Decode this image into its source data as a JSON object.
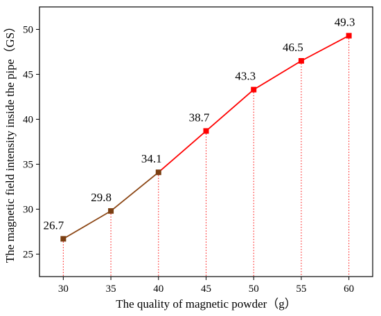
{
  "chart_data": {
    "type": "line",
    "xlabel": "The quality of magnetic powder（g）",
    "ylabel": "The magnetic field intensity inside the pipe（GS）",
    "xlim": [
      27.5,
      62.5
    ],
    "ylim": [
      22.5,
      52.5
    ],
    "x_ticks": [
      30,
      35,
      40,
      45,
      50,
      55,
      60
    ],
    "y_ticks": [
      25,
      30,
      35,
      40,
      45,
      50
    ],
    "grid": false,
    "series": [
      {
        "x": [
          30,
          35,
          40,
          45,
          50,
          55,
          60
        ],
        "y": [
          26.7,
          29.8,
          34.1,
          38.7,
          43.3,
          46.5,
          49.3
        ],
        "data_labels": [
          "26.7",
          "29.8",
          "34.1",
          "38.7",
          "43.3",
          "46.5",
          "49.3"
        ],
        "line_color": "#ff0000",
        "early_segment_color": "#8b4513",
        "marker_color": "#ff0000",
        "early_marker_color": "#7b3f12"
      }
    ]
  }
}
